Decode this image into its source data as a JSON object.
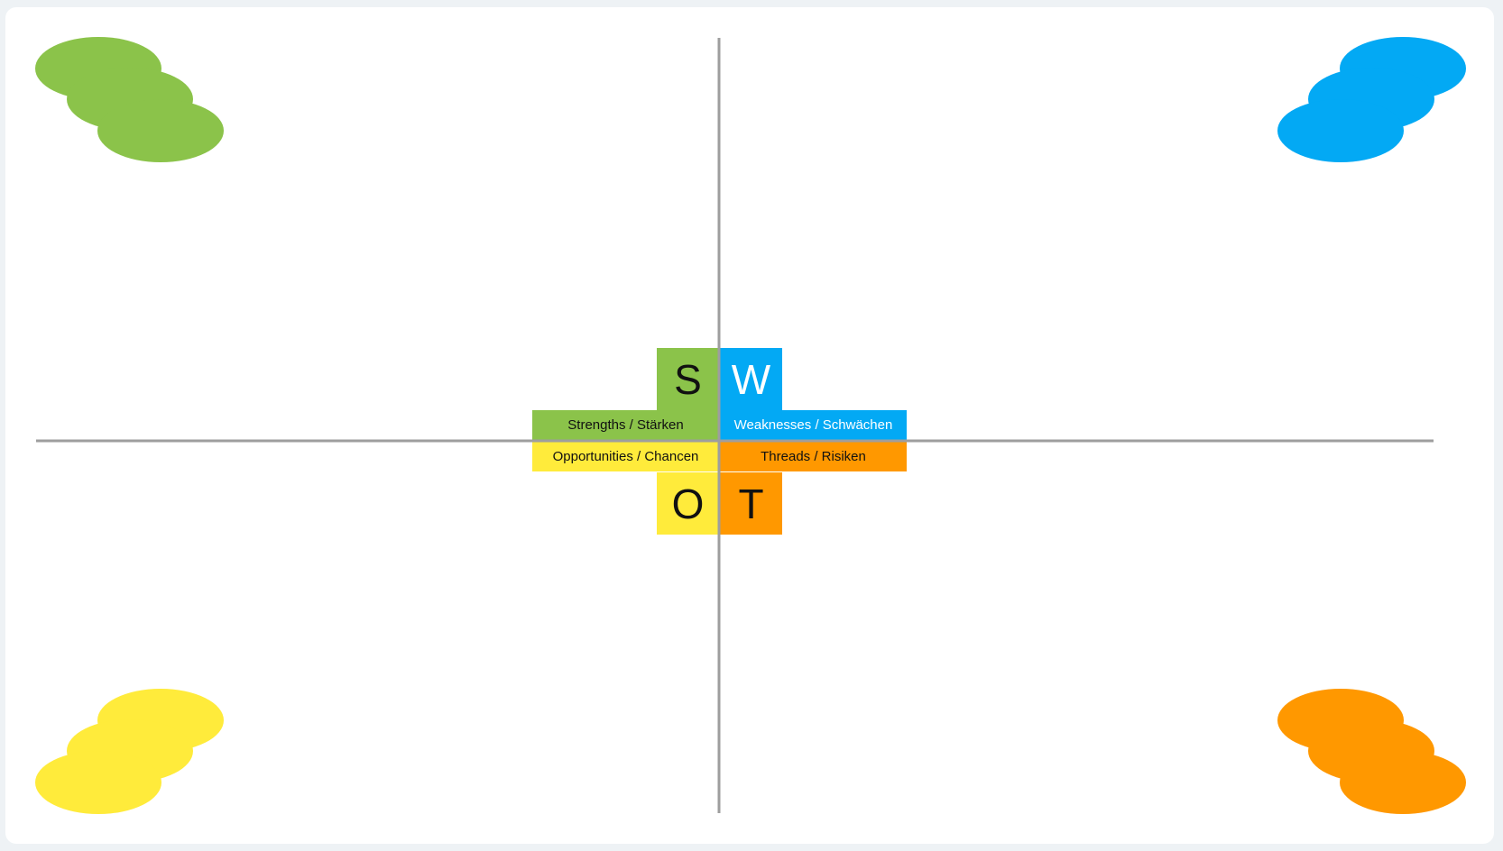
{
  "colors": {
    "strengths": "#8bc34a",
    "weaknesses": "#03a9f4",
    "opportunities": "#ffeb3b",
    "threats": "#ff9800",
    "axis": "#9e9e9e",
    "board": "#ffffff",
    "background": "#eef2f5"
  },
  "swot": {
    "s": {
      "letter": "S",
      "label": "Strengths / Stärken"
    },
    "w": {
      "letter": "W",
      "label": "Weaknesses / Schwächen"
    },
    "o": {
      "letter": "O",
      "label": "Opportunities / Chancen"
    },
    "t": {
      "letter": "T",
      "label": "Threads / Risiken"
    }
  }
}
